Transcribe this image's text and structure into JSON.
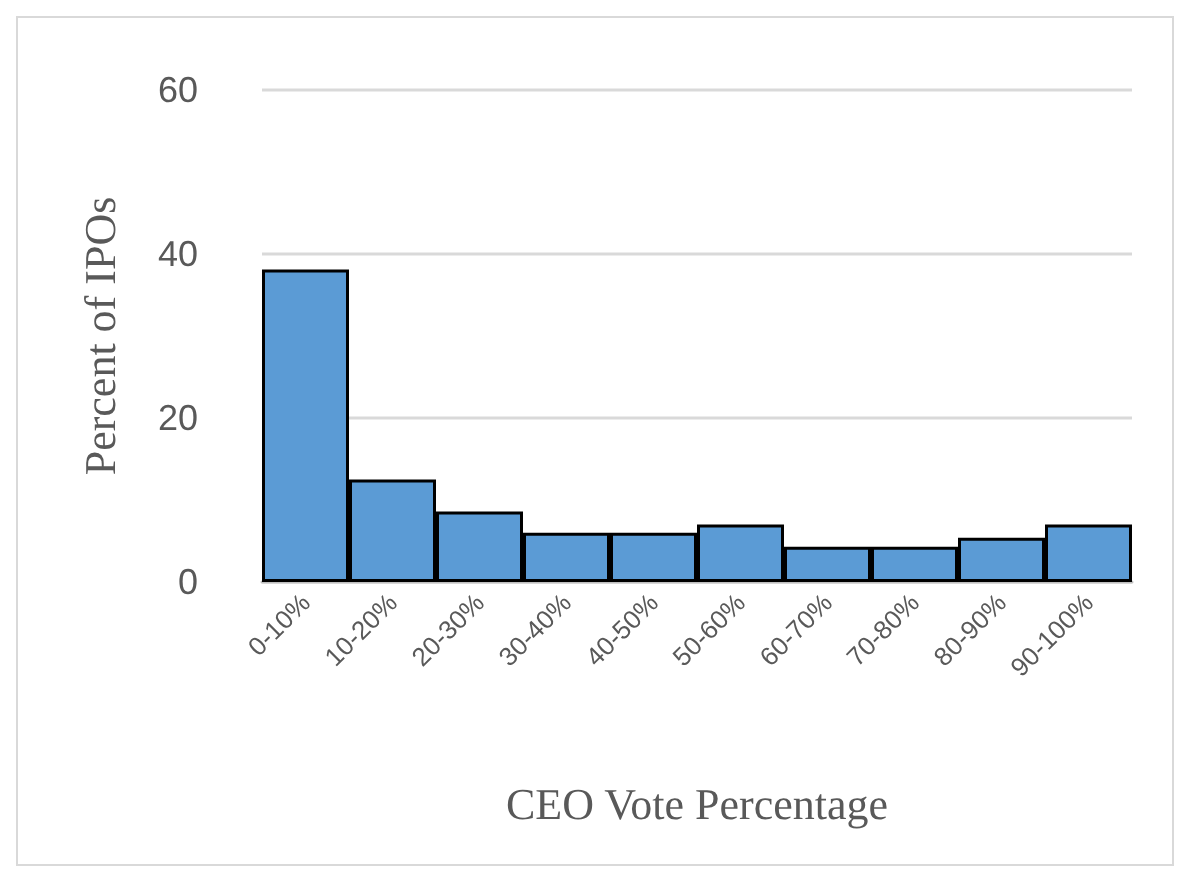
{
  "chart_data": {
    "type": "bar",
    "xlabel": "CEO Vote Percentage",
    "ylabel": "Percent of IPOs",
    "categories": [
      "0-10%",
      "10-20%",
      "20-30%",
      "30-40%",
      "40-50%",
      "50-60%",
      "60-70%",
      "70-80%",
      "80-90%",
      "90-100%"
    ],
    "values": [
      38.1,
      12.5,
      8.6,
      6.0,
      6.0,
      7.0,
      4.3,
      4.3,
      5.4,
      7.0
    ],
    "color": "#5b9bd5",
    "ylim": [
      0,
      60
    ],
    "yticks": [
      0,
      20,
      40,
      60
    ],
    "grid": "y"
  }
}
